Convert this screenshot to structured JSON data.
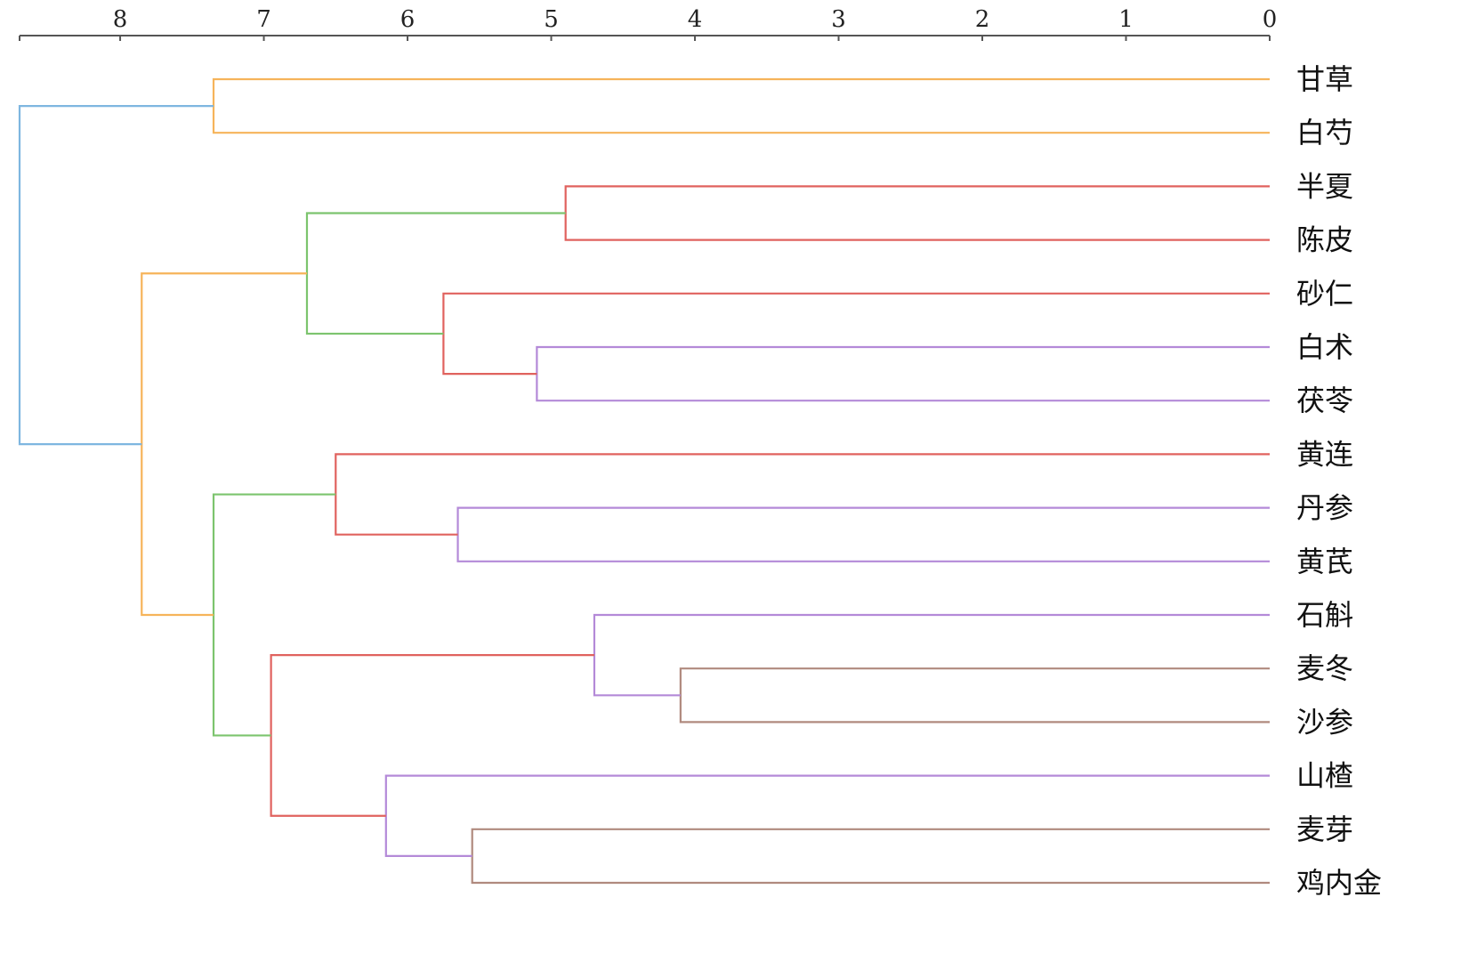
{
  "chart_data": {
    "type": "dendrogram",
    "orientation": "leaves-right",
    "x_axis": {
      "position": "top",
      "range": [
        8.7,
        0
      ],
      "ticks": [
        8,
        7,
        6,
        5,
        4,
        3,
        2,
        1,
        0
      ]
    },
    "leaves": [
      "甘草",
      "白芍",
      "半夏",
      "陈皮",
      "砂仁",
      "白术",
      "茯苓",
      "黄连",
      "丹参",
      "黄芪",
      "石斛",
      "麦冬",
      "沙参",
      "山楂",
      "麦芽",
      "鸡内金"
    ],
    "colors": {
      "blue": "#7eb6e0",
      "orange": "#f6b45a",
      "green": "#7cc46e",
      "red": "#e0625e",
      "purple": "#b48ad8",
      "brown": "#b08a7e"
    },
    "merges": [
      {
        "children": [
          "甘草",
          "白芍"
        ],
        "distance": 7.35,
        "color": "orange"
      },
      {
        "children": [
          "半夏",
          "陈皮"
        ],
        "distance": 4.9,
        "color": "red"
      },
      {
        "children": [
          "白术",
          "茯苓"
        ],
        "distance": 5.1,
        "color": "purple"
      },
      {
        "children": [
          "砂仁",
          2
        ],
        "distance": 5.75,
        "color": "red"
      },
      {
        "children": [
          1,
          3
        ],
        "distance": 6.7,
        "color": "green"
      },
      {
        "children": [
          "丹参",
          "黄芪"
        ],
        "distance": 5.65,
        "color": "purple"
      },
      {
        "children": [
          "黄连",
          5
        ],
        "distance": 6.5,
        "color": "red"
      },
      {
        "children": [
          "麦冬",
          "沙参"
        ],
        "distance": 4.1,
        "color": "brown"
      },
      {
        "children": [
          "石斛",
          7
        ],
        "distance": 4.7,
        "color": "purple"
      },
      {
        "children": [
          "麦芽",
          "鸡内金"
        ],
        "distance": 5.55,
        "color": "brown"
      },
      {
        "children": [
          "山楂",
          9
        ],
        "distance": 6.15,
        "color": "purple"
      },
      {
        "children": [
          8,
          10
        ],
        "distance": 6.95,
        "color": "red"
      },
      {
        "children": [
          6,
          11
        ],
        "distance": 7.35,
        "color": "green"
      },
      {
        "children": [
          4,
          12
        ],
        "distance": 7.85,
        "color": "orange"
      },
      {
        "children": [
          0,
          13
        ],
        "distance": 8.7,
        "color": "blue"
      }
    ]
  }
}
